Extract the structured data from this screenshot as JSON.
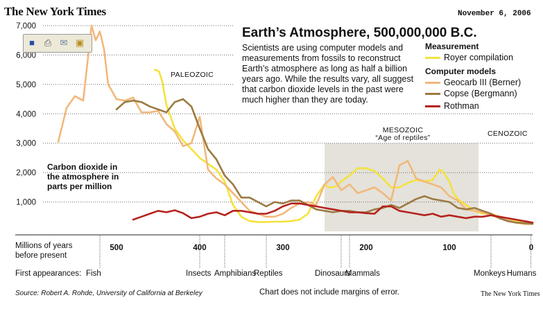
{
  "header": {
    "masthead": "The New York Times",
    "date": "November 6, 2006"
  },
  "title": "Earth’s Atmosphere, 500,000,000 B.C.",
  "description": "Scientists are using computer models and measurements from fossils to reconstruct Earth’s atmosphere as long as half a billion years ago. While the results vary, all suggest that carbon dioxide levels in the past were much higher than they are today.",
  "legend": {
    "measurement_heading": "Measurement",
    "models_heading": "Computer models",
    "items": [
      {
        "label": "Royer compilation",
        "color": "#f5e23c"
      },
      {
        "label": "Geocarb III (Berner)",
        "color": "#f2b87a"
      },
      {
        "label": "Copse (Bergmann)",
        "color": "#9c7a43"
      },
      {
        "label": "Rothman",
        "color": "#b5231e"
      }
    ]
  },
  "toolbar": {
    "icons": [
      "save-icon",
      "print-icon",
      "email-icon",
      "image-icon"
    ]
  },
  "eras": {
    "paleozoic": "PALEOZOIC",
    "mesozoic": "MESOZOIC",
    "mesozoic_sub": "“Age of reptiles”",
    "cenozoic": "CENOZOIC"
  },
  "axis": {
    "ylabel": "Carbon dioxide in the atmosphere in parts per million",
    "xlabel": "Millions of years before present",
    "first_appearances_label": "First appearances:"
  },
  "first_appearances": [
    {
      "label": "Fish",
      "mya": 520
    },
    {
      "label": "Insects",
      "mya": 400
    },
    {
      "label": "Amphibians",
      "mya": 370
    },
    {
      "label": "Reptiles",
      "mya": 320
    },
    {
      "label": "Dinosaurs",
      "mya": 230
    },
    {
      "label": "Mammals",
      "mya": 220
    },
    {
      "label": "Monkeys",
      "mya": 50
    },
    {
      "label": "Humans",
      "mya": 2
    }
  ],
  "footer": {
    "source": "Source: Robert A. Rohde, University of California at Berkeley",
    "note": "Chart does not include margins of error.",
    "credit": "The New York Times"
  },
  "chart_data": {
    "type": "line",
    "title": "Earth’s Atmosphere, 500,000,000 B.C.",
    "xlabel": "Millions of years before present",
    "ylabel": "Carbon dioxide in the atmosphere in parts per million",
    "xlim": [
      570,
      0
    ],
    "ylim": [
      0,
      7000
    ],
    "yticks": [
      1000,
      2000,
      3000,
      4000,
      5000,
      6000,
      7000
    ],
    "ytick_labels": [
      "1,000",
      "2,000",
      "3,000",
      "4,000",
      "5,000",
      "6,000",
      "7,000"
    ],
    "xticks": [
      500,
      400,
      300,
      200,
      100,
      0
    ],
    "shaded_region": {
      "label": "MESOZOIC",
      "from": 250,
      "to": 65
    },
    "series": [
      {
        "name": "Royer compilation",
        "color": "#f5e23c",
        "x": [
          454,
          449,
          445,
          440,
          435,
          430,
          420,
          410,
          400,
          390,
          380,
          370,
          360,
          350,
          340,
          330,
          320,
          310,
          300,
          290,
          280,
          270,
          260,
          250,
          245,
          240,
          235,
          230,
          220,
          210,
          200,
          190,
          180,
          170,
          160,
          150,
          140,
          130,
          120,
          112,
          108,
          100,
          95,
          90,
          80,
          70,
          60,
          50,
          40,
          30,
          20,
          10,
          0
        ],
        "y": [
          5500,
          5450,
          5100,
          4300,
          3900,
          3500,
          3100,
          2800,
          2500,
          2300,
          2100,
          1700,
          900,
          500,
          350,
          320,
          320,
          330,
          330,
          350,
          400,
          600,
          1200,
          1600,
          1500,
          1500,
          1550,
          1700,
          1900,
          2150,
          2150,
          2050,
          1800,
          1500,
          1500,
          1650,
          1750,
          1700,
          1750,
          2100,
          2050,
          1700,
          1300,
          1100,
          900,
          700,
          600,
          600,
          500,
          400,
          350,
          300,
          280
        ]
      },
      {
        "name": "Geocarb III (Berner)",
        "color": "#f2b87a",
        "x": [
          570,
          560,
          550,
          540,
          530,
          525,
          520,
          515,
          510,
          500,
          490,
          480,
          470,
          460,
          450,
          440,
          430,
          420,
          410,
          400,
          390,
          380,
          370,
          360,
          350,
          340,
          330,
          320,
          310,
          300,
          290,
          280,
          270,
          260,
          250,
          240,
          230,
          220,
          210,
          200,
          190,
          180,
          170,
          160,
          150,
          140,
          130,
          120,
          110,
          100,
          90,
          80,
          70,
          60,
          50,
          40,
          30,
          20,
          10,
          0
        ],
        "y": [
          3050,
          4200,
          4600,
          4450,
          7000,
          6500,
          6800,
          6200,
          5000,
          4500,
          4450,
          4550,
          4050,
          4050,
          4100,
          3650,
          3400,
          2900,
          3000,
          3900,
          2100,
          1800,
          1600,
          1300,
          1000,
          700,
          600,
          500,
          500,
          600,
          800,
          950,
          1000,
          900,
          1600,
          1850,
          1400,
          1600,
          1300,
          1400,
          1500,
          1300,
          1050,
          2250,
          2400,
          1800,
          1700,
          1600,
          1500,
          1200,
          1050,
          750,
          700,
          650,
          550,
          450,
          400,
          300,
          250,
          250
        ]
      },
      {
        "name": "Copse (Bergmann)",
        "color": "#9c7a43",
        "x": [
          500,
          490,
          480,
          470,
          460,
          450,
          440,
          430,
          420,
          410,
          400,
          390,
          380,
          370,
          360,
          350,
          340,
          330,
          320,
          310,
          300,
          290,
          280,
          270,
          260,
          250,
          240,
          230,
          220,
          210,
          200,
          190,
          180,
          170,
          160,
          150,
          140,
          130,
          120,
          110,
          100,
          90,
          80,
          70,
          60,
          50,
          40,
          30,
          20,
          10,
          0
        ],
        "y": [
          4150,
          4400,
          4450,
          4400,
          4250,
          4150,
          4050,
          4400,
          4500,
          4250,
          3500,
          2800,
          2450,
          1900,
          1600,
          1150,
          1150,
          1000,
          850,
          1000,
          950,
          1050,
          1050,
          900,
          750,
          700,
          650,
          700,
          700,
          650,
          650,
          750,
          800,
          900,
          800,
          950,
          1100,
          1200,
          1100,
          1050,
          1000,
          800,
          750,
          800,
          700,
          600,
          450,
          350,
          300,
          280,
          260
        ]
      },
      {
        "name": "Rothman",
        "color": "#b5231e",
        "x": [
          480,
          470,
          460,
          450,
          440,
          430,
          420,
          410,
          400,
          390,
          380,
          370,
          360,
          350,
          340,
          330,
          320,
          310,
          300,
          290,
          280,
          270,
          260,
          250,
          240,
          230,
          220,
          210,
          200,
          190,
          180,
          170,
          160,
          150,
          140,
          130,
          120,
          110,
          100,
          90,
          80,
          70,
          60,
          50,
          40,
          30,
          20,
          10,
          0
        ],
        "y": [
          400,
          500,
          600,
          700,
          650,
          720,
          620,
          450,
          500,
          600,
          650,
          550,
          700,
          700,
          650,
          600,
          600,
          700,
          850,
          950,
          950,
          900,
          850,
          800,
          750,
          700,
          650,
          650,
          620,
          600,
          850,
          850,
          700,
          650,
          600,
          550,
          600,
          500,
          550,
          500,
          450,
          500,
          500,
          550,
          500,
          450,
          400,
          350,
          300
        ]
      }
    ]
  }
}
